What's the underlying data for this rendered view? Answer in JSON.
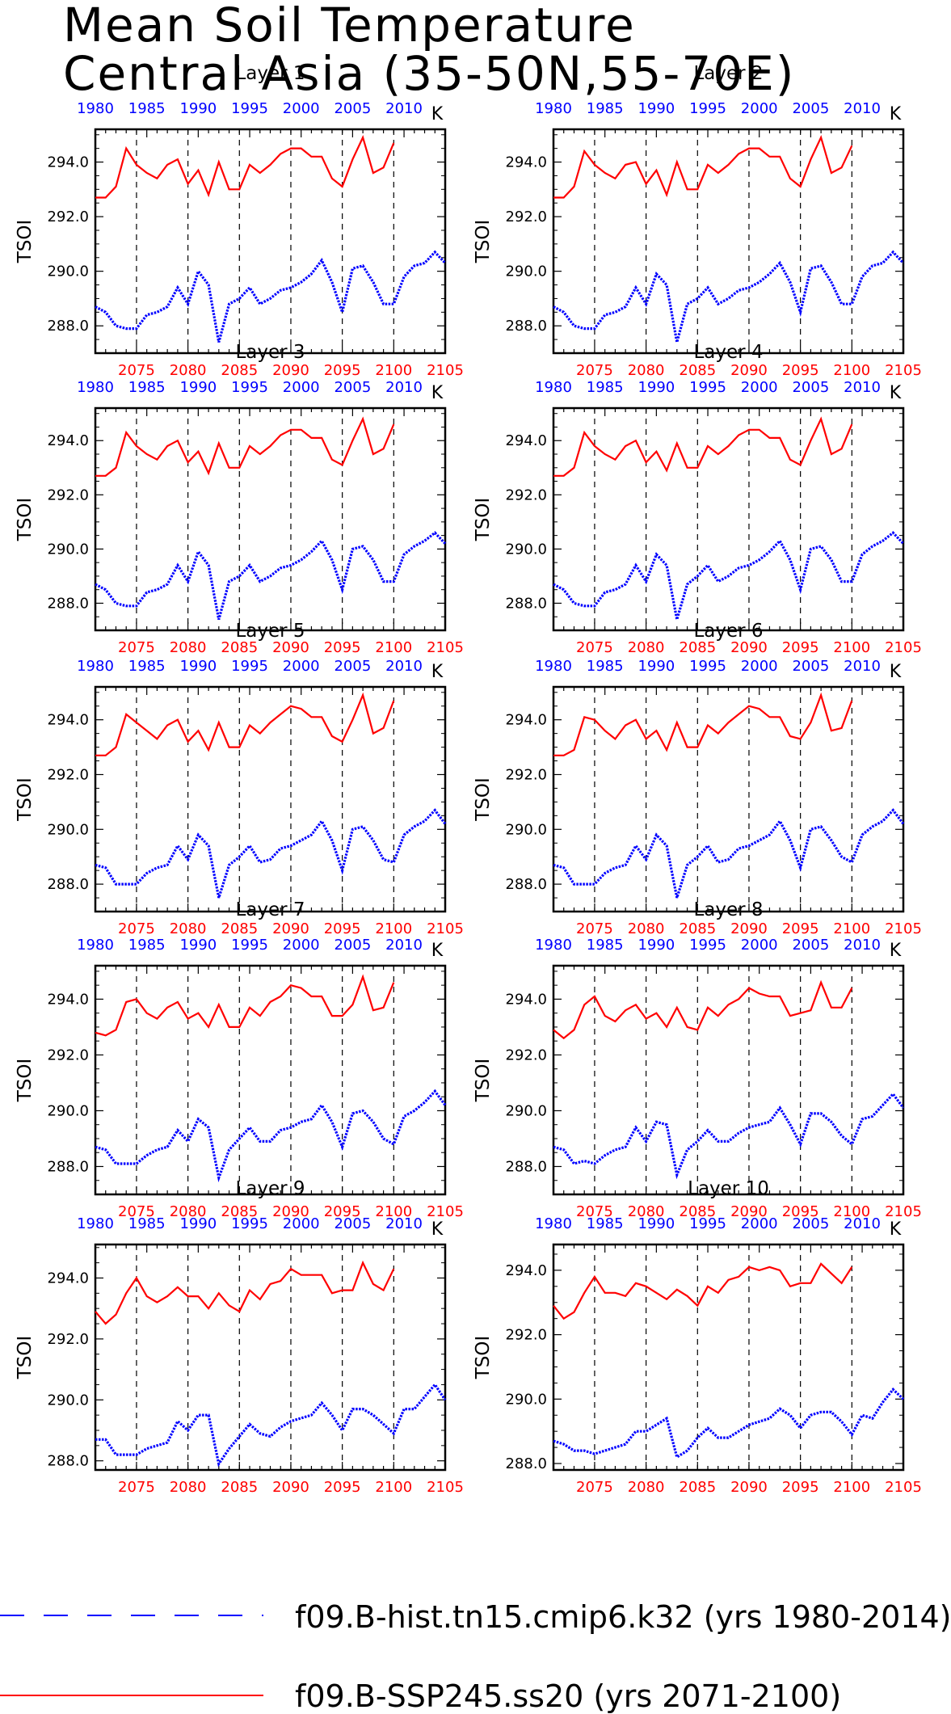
{
  "title": {
    "line1": "Mean Soil Temperature",
    "line2": "Central Asia (35-50N,55-70E)"
  },
  "legend": {
    "hist_label": "f09.B-hist.tn15.cmip6.k32 (yrs 1980-2014)",
    "ssp_label": "f09.B-SSP245.ss20 (yrs 2071-2100)"
  },
  "colors": {
    "hist": "#0000ff",
    "ssp": "#ff0000",
    "axis": "#000000"
  },
  "chart_data": {
    "type": "line",
    "ylabel": "TSOI",
    "units": "K",
    "top_axis": {
      "range": [
        1980,
        2014
      ],
      "ticks": [
        1980,
        1985,
        1990,
        1995,
        2000,
        2005,
        2010
      ],
      "color": "blue"
    },
    "bottom_axis": {
      "range": [
        2071,
        2105
      ],
      "ticks": [
        2075,
        2080,
        2085,
        2090,
        2095,
        2100,
        2105
      ],
      "color": "red"
    },
    "vertical_dashed_lines_at": [
      2075,
      2080,
      2085,
      2090,
      2095,
      2100
    ],
    "panels": [
      {
        "name": "Layer 1",
        "ylim": [
          287.0,
          295.2
        ],
        "yticks": [
          "288.0",
          "290.0",
          "292.0",
          "294.0"
        ],
        "hist": [
          288.7,
          288.5,
          288.0,
          287.9,
          287.9,
          288.4,
          288.5,
          288.7,
          289.4,
          288.8,
          290.0,
          289.5,
          287.4,
          288.8,
          289.0,
          289.4,
          288.8,
          289.0,
          289.3,
          289.4,
          289.6,
          289.9,
          290.4,
          289.6,
          288.5,
          290.1,
          290.2,
          289.6,
          288.8,
          288.8,
          289.8,
          290.2,
          290.3,
          290.7,
          290.3
        ],
        "ssp": [
          292.7,
          292.7,
          293.1,
          294.5,
          293.9,
          293.6,
          293.4,
          293.9,
          294.1,
          293.2,
          293.7,
          292.8,
          294.0,
          293.0,
          293.0,
          293.9,
          293.6,
          293.9,
          294.3,
          294.5,
          294.5,
          294.2,
          294.2,
          293.4,
          293.1,
          294.1,
          294.9,
          293.6,
          293.8,
          294.7
        ]
      },
      {
        "name": "Layer 2",
        "ylim": [
          287.0,
          295.2
        ],
        "yticks": [
          "288.0",
          "290.0",
          "292.0",
          "294.0"
        ],
        "hist": [
          288.7,
          288.5,
          288.0,
          287.9,
          287.9,
          288.4,
          288.5,
          288.7,
          289.4,
          288.8,
          289.9,
          289.5,
          287.4,
          288.8,
          289.0,
          289.4,
          288.8,
          289.0,
          289.3,
          289.4,
          289.6,
          289.9,
          290.3,
          289.6,
          288.5,
          290.1,
          290.2,
          289.6,
          288.8,
          288.8,
          289.8,
          290.2,
          290.3,
          290.7,
          290.3
        ],
        "ssp": [
          292.7,
          292.7,
          293.1,
          294.4,
          293.9,
          293.6,
          293.4,
          293.9,
          294.0,
          293.2,
          293.7,
          292.8,
          294.0,
          293.0,
          293.0,
          293.9,
          293.6,
          293.9,
          294.3,
          294.5,
          294.5,
          294.2,
          294.2,
          293.4,
          293.1,
          294.1,
          294.9,
          293.6,
          293.8,
          294.6
        ]
      },
      {
        "name": "Layer 3",
        "ylim": [
          287.0,
          295.2
        ],
        "yticks": [
          "288.0",
          "290.0",
          "292.0",
          "294.0"
        ],
        "hist": [
          288.7,
          288.5,
          288.0,
          287.9,
          287.9,
          288.4,
          288.5,
          288.7,
          289.4,
          288.8,
          289.9,
          289.4,
          287.4,
          288.8,
          289.0,
          289.4,
          288.8,
          289.0,
          289.3,
          289.4,
          289.6,
          289.9,
          290.3,
          289.6,
          288.5,
          290.0,
          290.1,
          289.6,
          288.8,
          288.8,
          289.8,
          290.1,
          290.3,
          290.6,
          290.2
        ],
        "ssp": [
          292.7,
          292.7,
          293.0,
          294.3,
          293.8,
          293.5,
          293.3,
          293.8,
          294.0,
          293.2,
          293.6,
          292.8,
          293.9,
          293.0,
          293.0,
          293.8,
          293.5,
          293.8,
          294.2,
          294.4,
          294.4,
          294.1,
          294.1,
          293.3,
          293.1,
          294.0,
          294.8,
          293.5,
          293.7,
          294.6
        ]
      },
      {
        "name": "Layer 4",
        "ylim": [
          287.0,
          295.2
        ],
        "yticks": [
          "288.0",
          "290.0",
          "292.0",
          "294.0"
        ],
        "hist": [
          288.7,
          288.5,
          288.0,
          287.9,
          287.9,
          288.4,
          288.5,
          288.7,
          289.4,
          288.8,
          289.8,
          289.4,
          287.4,
          288.7,
          289.0,
          289.4,
          288.8,
          289.0,
          289.3,
          289.4,
          289.6,
          289.9,
          290.3,
          289.6,
          288.5,
          290.0,
          290.1,
          289.6,
          288.8,
          288.8,
          289.8,
          290.1,
          290.3,
          290.6,
          290.2
        ],
        "ssp": [
          292.7,
          292.7,
          293.0,
          294.3,
          293.8,
          293.5,
          293.3,
          293.8,
          294.0,
          293.2,
          293.6,
          292.9,
          293.9,
          293.0,
          293.0,
          293.8,
          293.5,
          293.8,
          294.2,
          294.4,
          294.4,
          294.1,
          294.1,
          293.3,
          293.1,
          294.0,
          294.8,
          293.5,
          293.7,
          294.6
        ]
      },
      {
        "name": "Layer 5",
        "ylim": [
          287.0,
          295.2
        ],
        "yticks": [
          "288.0",
          "290.0",
          "292.0",
          "294.0"
        ],
        "hist": [
          288.7,
          288.6,
          288.0,
          288.0,
          288.0,
          288.4,
          288.6,
          288.7,
          289.4,
          288.9,
          289.8,
          289.4,
          287.5,
          288.7,
          289.0,
          289.4,
          288.8,
          288.9,
          289.3,
          289.4,
          289.6,
          289.8,
          290.3,
          289.6,
          288.5,
          290.0,
          290.1,
          289.6,
          288.9,
          288.8,
          289.8,
          290.1,
          290.3,
          290.7,
          290.2
        ],
        "ssp": [
          292.7,
          292.7,
          293.0,
          294.2,
          293.9,
          293.6,
          293.3,
          293.8,
          294.0,
          293.2,
          293.6,
          292.9,
          293.9,
          293.0,
          293.0,
          293.8,
          293.5,
          293.9,
          294.2,
          294.5,
          294.4,
          294.1,
          294.1,
          293.4,
          293.2,
          294.0,
          294.9,
          293.5,
          293.7,
          294.7
        ]
      },
      {
        "name": "Layer 6",
        "ylim": [
          287.0,
          295.2
        ],
        "yticks": [
          "288.0",
          "290.0",
          "292.0",
          "294.0"
        ],
        "hist": [
          288.7,
          288.6,
          288.0,
          288.0,
          288.0,
          288.4,
          288.6,
          288.7,
          289.4,
          288.9,
          289.8,
          289.4,
          287.5,
          288.7,
          289.0,
          289.4,
          288.8,
          288.9,
          289.3,
          289.4,
          289.6,
          289.8,
          290.3,
          289.6,
          288.6,
          290.0,
          290.1,
          289.6,
          289.0,
          288.8,
          289.8,
          290.1,
          290.3,
          290.7,
          290.2
        ],
        "ssp": [
          292.7,
          292.7,
          292.9,
          294.1,
          294.0,
          293.6,
          293.3,
          293.8,
          294.0,
          293.3,
          293.6,
          292.9,
          293.9,
          293.0,
          293.0,
          293.8,
          293.5,
          293.9,
          294.2,
          294.5,
          294.4,
          294.1,
          294.1,
          293.4,
          293.3,
          293.9,
          294.9,
          293.6,
          293.7,
          294.7
        ]
      },
      {
        "name": "Layer 7",
        "ylim": [
          287.0,
          295.2
        ],
        "yticks": [
          "288.0",
          "290.0",
          "292.0",
          "294.0"
        ],
        "hist": [
          288.7,
          288.6,
          288.1,
          288.1,
          288.1,
          288.4,
          288.6,
          288.7,
          289.3,
          288.9,
          289.7,
          289.4,
          287.6,
          288.6,
          289.0,
          289.4,
          288.9,
          288.9,
          289.3,
          289.4,
          289.6,
          289.7,
          290.2,
          289.6,
          288.7,
          289.9,
          290.0,
          289.6,
          289.0,
          288.8,
          289.8,
          290.0,
          290.3,
          290.7,
          290.2
        ],
        "ssp": [
          292.8,
          292.7,
          292.9,
          293.9,
          294.0,
          293.5,
          293.3,
          293.7,
          293.9,
          293.3,
          293.5,
          293.0,
          293.8,
          293.0,
          293.0,
          293.7,
          293.4,
          293.9,
          294.1,
          294.5,
          294.4,
          294.1,
          294.1,
          293.4,
          293.4,
          293.8,
          294.8,
          293.6,
          293.7,
          294.6
        ]
      },
      {
        "name": "Layer 8",
        "ylim": [
          287.0,
          295.2
        ],
        "yticks": [
          "288.0",
          "290.0",
          "292.0",
          "294.0"
        ],
        "hist": [
          288.7,
          288.6,
          288.1,
          288.2,
          288.1,
          288.4,
          288.6,
          288.7,
          289.4,
          288.9,
          289.6,
          289.5,
          287.7,
          288.6,
          288.9,
          289.3,
          288.9,
          288.9,
          289.2,
          289.4,
          289.5,
          289.6,
          290.1,
          289.5,
          288.8,
          289.9,
          289.9,
          289.6,
          289.1,
          288.8,
          289.7,
          289.8,
          290.2,
          290.6,
          290.1
        ],
        "ssp": [
          292.9,
          292.6,
          292.9,
          293.8,
          294.1,
          293.4,
          293.2,
          293.6,
          293.8,
          293.3,
          293.5,
          293.0,
          293.7,
          293.0,
          292.9,
          293.7,
          293.4,
          293.8,
          294.0,
          294.4,
          294.2,
          294.1,
          294.1,
          293.4,
          293.5,
          293.6,
          294.6,
          293.7,
          293.7,
          294.4
        ]
      },
      {
        "name": "Layer 9",
        "ylim": [
          287.7,
          295.1
        ],
        "yticks": [
          "288.0",
          "290.0",
          "292.0",
          "294.0"
        ],
        "hist": [
          288.7,
          288.7,
          288.2,
          288.2,
          288.2,
          288.4,
          288.5,
          288.6,
          289.3,
          289.0,
          289.5,
          289.5,
          287.9,
          288.4,
          288.8,
          289.2,
          288.9,
          288.8,
          289.1,
          289.3,
          289.4,
          289.5,
          289.9,
          289.5,
          289.0,
          289.7,
          289.7,
          289.5,
          289.2,
          288.9,
          289.7,
          289.7,
          290.1,
          290.5,
          290.0
        ],
        "ssp": [
          292.9,
          292.5,
          292.8,
          293.5,
          294.0,
          293.4,
          293.2,
          293.4,
          293.7,
          293.4,
          293.4,
          293.0,
          293.5,
          293.1,
          292.9,
          293.6,
          293.3,
          293.8,
          293.9,
          294.3,
          294.1,
          294.1,
          294.1,
          293.5,
          293.6,
          293.6,
          294.5,
          293.8,
          293.6,
          294.3
        ]
      },
      {
        "name": "Layer 10",
        "ylim": [
          287.8,
          294.8
        ],
        "yticks": [
          "288.0",
          "290.0",
          "292.0",
          "294.0"
        ],
        "hist": [
          288.7,
          288.6,
          288.4,
          288.4,
          288.3,
          288.4,
          288.5,
          288.6,
          289.0,
          289.0,
          289.2,
          289.4,
          288.2,
          288.4,
          288.8,
          289.1,
          288.8,
          288.8,
          289.0,
          289.2,
          289.3,
          289.4,
          289.7,
          289.5,
          289.1,
          289.5,
          289.6,
          289.6,
          289.3,
          288.9,
          289.5,
          289.4,
          289.9,
          290.3,
          290.0
        ],
        "ssp": [
          292.9,
          292.5,
          292.7,
          293.3,
          293.8,
          293.3,
          293.3,
          293.2,
          293.6,
          293.5,
          293.3,
          293.1,
          293.4,
          293.2,
          292.9,
          293.5,
          293.3,
          293.7,
          293.8,
          294.1,
          294.0,
          294.1,
          294.0,
          293.5,
          293.6,
          293.6,
          294.2,
          293.9,
          293.6,
          294.1
        ]
      }
    ]
  }
}
